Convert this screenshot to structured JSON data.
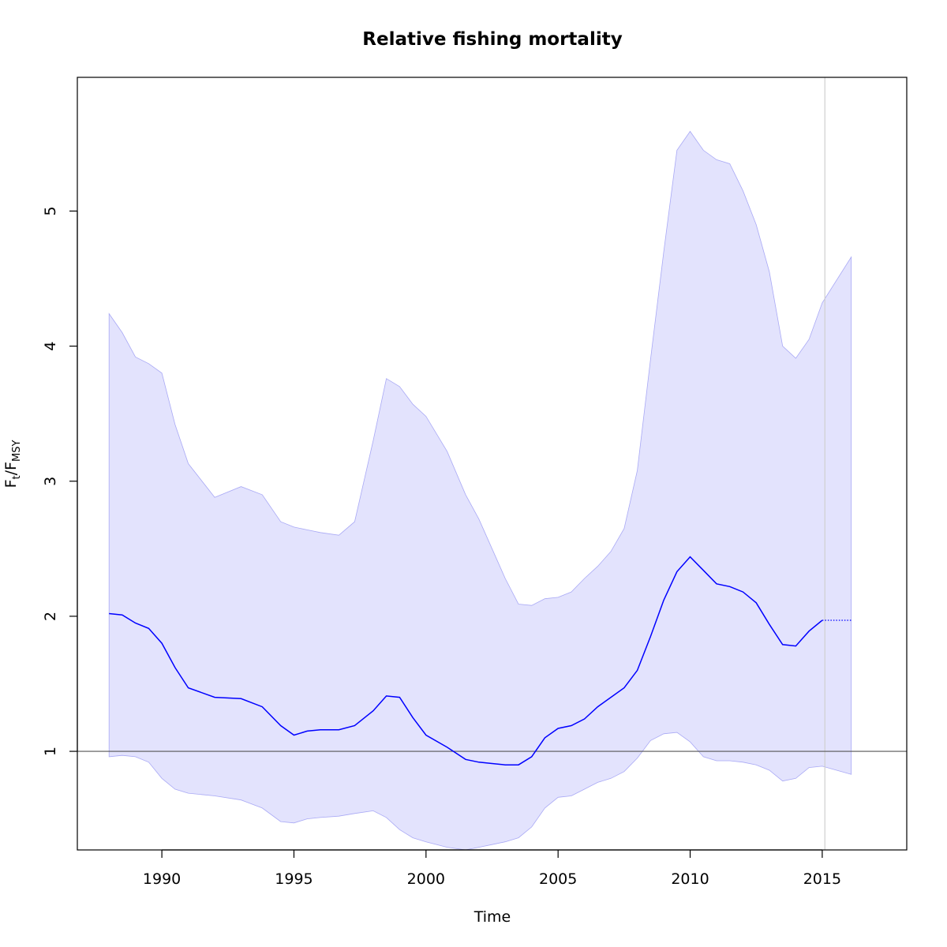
{
  "chart_data": {
    "type": "line",
    "title": "Relative fishing mortality",
    "xlabel": "Time",
    "ylabel": {
      "main": "F",
      "sub1": "t",
      "sep": "/F",
      "sub2": "MSY"
    },
    "xlim": [
      1986.8,
      2018.2
    ],
    "ylim": [
      0.27,
      5.99
    ],
    "x_ticks": [
      1990,
      1995,
      2000,
      2005,
      2010,
      2015
    ],
    "y_ticks": [
      1,
      2,
      3,
      4,
      5
    ],
    "reference_line_y": 1,
    "current_year_line_x": 2015.1,
    "colors": {
      "line": "#0000ff",
      "band_fill": "#e3e3fd",
      "band_edge": "#a9a9f5",
      "ref_line": "#555555",
      "vline": "#cfcfcf"
    },
    "series": [
      {
        "role": "estimate",
        "x": [
          1988.0,
          1988.5,
          1989.0,
          1989.5,
          1990.0,
          1990.5,
          1991.0,
          1992.0,
          1993.0,
          1993.8,
          1994.5,
          1995.0,
          1995.5,
          1996.0,
          1996.7,
          1997.3,
          1998.0,
          1998.5,
          1999.0,
          1999.5,
          2000.0,
          2000.8,
          2001.5,
          2002.0,
          2002.5,
          2003.0,
          2003.5,
          2004.0,
          2004.5,
          2005.0,
          2005.5,
          2006.0,
          2006.5,
          2007.0,
          2007.5,
          2008.0,
          2008.5,
          2009.0,
          2009.5,
          2010.0,
          2010.5,
          2011.0,
          2011.5,
          2012.0,
          2012.5,
          2013.0,
          2013.5,
          2014.0,
          2014.5,
          2015.0
        ],
        "y": [
          2.02,
          2.01,
          1.95,
          1.91,
          1.8,
          1.62,
          1.47,
          1.4,
          1.39,
          1.33,
          1.19,
          1.12,
          1.15,
          1.16,
          1.16,
          1.19,
          1.3,
          1.41,
          1.4,
          1.25,
          1.12,
          1.03,
          0.94,
          0.92,
          0.91,
          0.9,
          0.9,
          0.96,
          1.1,
          1.17,
          1.19,
          1.24,
          1.33,
          1.4,
          1.47,
          1.6,
          1.85,
          2.12,
          2.33,
          2.44,
          2.34,
          2.24,
          2.22,
          2.18,
          2.1,
          1.94,
          1.79,
          1.78,
          1.89,
          1.97
        ]
      },
      {
        "role": "forecast",
        "x": [
          2015.0,
          2016.1
        ],
        "y": [
          1.97,
          1.97
        ]
      },
      {
        "role": "upper_ci",
        "x": [
          1988.0,
          1988.5,
          1989.0,
          1989.5,
          1990.0,
          1990.5,
          1991.0,
          1992.0,
          1993.0,
          1993.8,
          1994.5,
          1995.0,
          1995.5,
          1996.0,
          1996.7,
          1997.3,
          1998.0,
          1998.5,
          1999.0,
          1999.5,
          2000.0,
          2000.8,
          2001.5,
          2002.0,
          2002.5,
          2003.0,
          2003.5,
          2004.0,
          2004.5,
          2005.0,
          2005.5,
          2006.0,
          2006.5,
          2007.0,
          2007.5,
          2008.0,
          2008.5,
          2009.0,
          2009.5,
          2010.0,
          2010.5,
          2011.0,
          2011.5,
          2012.0,
          2012.5,
          2013.0,
          2013.5,
          2014.0,
          2014.5,
          2015.0,
          2016.1
        ],
        "y": [
          4.24,
          4.1,
          3.92,
          3.87,
          3.8,
          3.42,
          3.13,
          2.88,
          2.96,
          2.9,
          2.7,
          2.66,
          2.64,
          2.62,
          2.6,
          2.7,
          3.3,
          3.76,
          3.7,
          3.57,
          3.48,
          3.22,
          2.9,
          2.72,
          2.5,
          2.28,
          2.09,
          2.08,
          2.13,
          2.14,
          2.18,
          2.28,
          2.37,
          2.48,
          2.65,
          3.08,
          3.9,
          4.7,
          5.45,
          5.59,
          5.45,
          5.38,
          5.35,
          5.15,
          4.9,
          4.55,
          4.0,
          3.91,
          4.05,
          4.32,
          4.66
        ]
      },
      {
        "role": "lower_ci",
        "x": [
          1988.0,
          1988.5,
          1989.0,
          1989.5,
          1990.0,
          1990.5,
          1991.0,
          1992.0,
          1993.0,
          1993.8,
          1994.5,
          1995.0,
          1995.5,
          1996.0,
          1996.7,
          1997.3,
          1998.0,
          1998.5,
          1999.0,
          1999.5,
          2000.0,
          2000.8,
          2001.5,
          2002.0,
          2002.5,
          2003.0,
          2003.5,
          2004.0,
          2004.5,
          2005.0,
          2005.5,
          2006.0,
          2006.5,
          2007.0,
          2007.5,
          2008.0,
          2008.5,
          2009.0,
          2009.5,
          2010.0,
          2010.5,
          2011.0,
          2011.5,
          2012.0,
          2012.5,
          2013.0,
          2013.5,
          2014.0,
          2014.5,
          2015.0,
          2016.1
        ],
        "y": [
          0.96,
          0.97,
          0.96,
          0.92,
          0.8,
          0.72,
          0.69,
          0.67,
          0.64,
          0.58,
          0.48,
          0.47,
          0.5,
          0.51,
          0.52,
          0.54,
          0.56,
          0.51,
          0.42,
          0.36,
          0.33,
          0.29,
          0.27,
          0.29,
          0.31,
          0.33,
          0.36,
          0.44,
          0.58,
          0.66,
          0.67,
          0.72,
          0.77,
          0.8,
          0.85,
          0.95,
          1.08,
          1.13,
          1.14,
          1.07,
          0.96,
          0.93,
          0.93,
          0.92,
          0.9,
          0.86,
          0.78,
          0.8,
          0.88,
          0.89,
          0.83
        ]
      }
    ]
  }
}
